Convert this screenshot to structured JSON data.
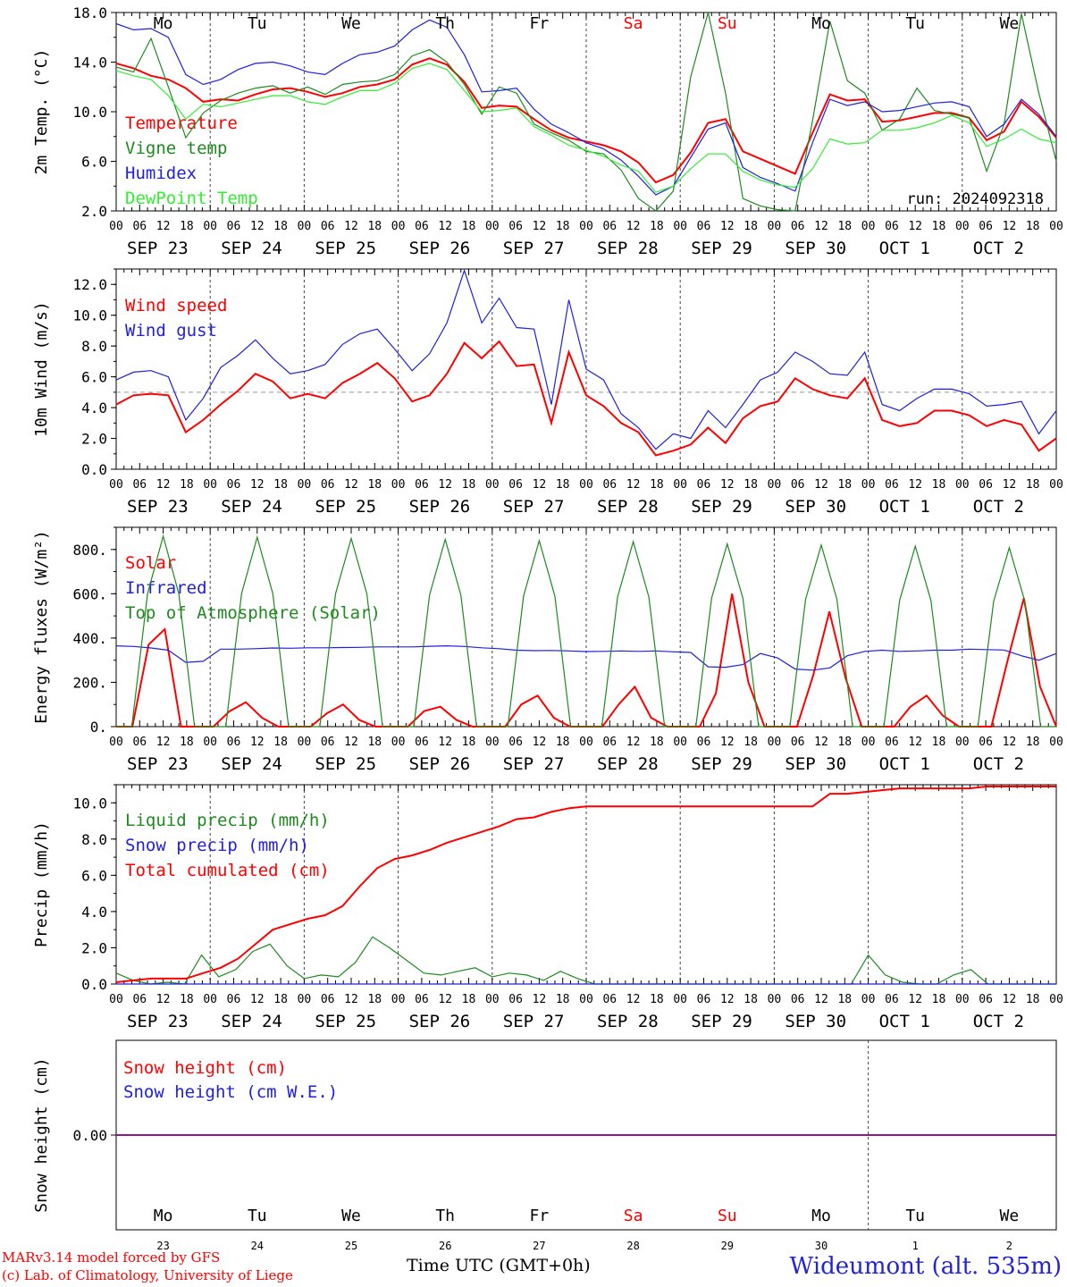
{
  "station": "Wideumont (alt. 535m)",
  "credits": [
    "MARv3.14 model forced by GFS",
    "(c) Lab. of Climatology, University of Liege"
  ],
  "time_axis_label": "Time UTC (GMT+0h)",
  "run_label": "run: 2024092318",
  "colors": {
    "red": "#ff0000",
    "green": "#1f8a1f",
    "blue": "#2020e0",
    "lightgreen": "#33ee33",
    "purple": "#8a1a8a",
    "weekend": "#ff0000"
  },
  "days": {
    "weekday_labels": [
      "Mo",
      "Tu",
      "We",
      "Th",
      "Fr",
      "Sa",
      "Su",
      "Mo",
      "Tu",
      "We"
    ],
    "weekend_index": [
      5,
      6
    ],
    "date_labels": [
      "SEP 23",
      "SEP 24",
      "SEP 25",
      "SEP 26",
      "SEP 27",
      "SEP 28",
      "SEP 29",
      "SEP 30",
      "OCT  1",
      "OCT  2"
    ],
    "day_numbers": [
      "23",
      "24",
      "25",
      "26",
      "27",
      "28",
      "29",
      "30",
      "1",
      "2"
    ],
    "hour_ticks": [
      "00",
      "06",
      "12",
      "18"
    ],
    "end_tick": "00"
  },
  "chart_data": [
    {
      "type": "line",
      "ylabel": "2m Temp. (°C)",
      "yticks": [
        "18.0",
        "14.0",
        "10.0",
        "6.0",
        "2.0"
      ],
      "ylim": [
        2,
        18
      ],
      "x_hours_step": 6,
      "series": [
        {
          "name": "Temperature",
          "color": "red",
          "values": [
            13.9,
            13.5,
            12.9,
            12.6,
            11.9,
            10.8,
            11.0,
            10.9,
            11.4,
            11.8,
            11.9,
            11.6,
            11.2,
            11.5,
            12.0,
            12.2,
            12.6,
            13.8,
            14.3,
            13.8,
            12.4,
            10.3,
            10.5,
            10.4,
            9.4,
            8.5,
            7.9,
            7.6,
            7.3,
            6.8,
            5.9,
            4.3,
            4.9,
            6.7,
            9.1,
            9.4,
            6.8,
            6.2,
            5.6,
            5.0,
            8.3,
            11.4,
            10.9,
            11.0,
            9.2,
            9.3,
            9.6,
            9.9,
            9.9,
            9.5,
            7.7,
            8.4,
            10.8,
            9.6,
            7.9
          ]
        },
        {
          "name": "Vigne temp",
          "color": "green",
          "values": [
            13.6,
            13.2,
            15.9,
            12.0,
            7.9,
            9.9,
            10.9,
            11.5,
            11.9,
            12.1,
            11.5,
            12.0,
            11.4,
            12.2,
            12.4,
            12.5,
            13.0,
            14.5,
            15.0,
            14.0,
            12.2,
            9.8,
            12.0,
            11.5,
            9.0,
            8.3,
            7.7,
            6.8,
            6.6,
            5.3,
            3.0,
            2.0,
            3.6,
            12.8,
            18.0,
            11.5,
            3.0,
            2.4,
            2.1,
            1.7,
            9.3,
            17.3,
            12.5,
            11.5,
            8.5,
            9.4,
            11.9,
            10.1,
            9.8,
            9.5,
            5.2,
            9.0,
            17.9,
            11.5,
            6.0
          ]
        },
        {
          "name": "Humidex",
          "color": "blue",
          "values": [
            17.1,
            16.6,
            16.7,
            16.0,
            13.0,
            12.2,
            12.6,
            13.4,
            13.9,
            14.0,
            13.7,
            13.2,
            13.0,
            13.9,
            14.6,
            14.8,
            15.3,
            16.6,
            17.4,
            16.8,
            14.6,
            11.6,
            11.7,
            11.9,
            10.2,
            9.0,
            8.3,
            7.5,
            7.0,
            6.1,
            4.8,
            3.3,
            4.0,
            6.3,
            8.6,
            9.1,
            5.5,
            4.7,
            4.2,
            3.6,
            7.5,
            11.0,
            10.5,
            10.8,
            10.0,
            10.1,
            10.4,
            10.7,
            10.8,
            10.4,
            8.0,
            9.0,
            11.0,
            9.8,
            8.0
          ]
        },
        {
          "name": "DewPoint Temp",
          "color": "lightgreen",
          "values": [
            13.3,
            12.9,
            12.6,
            11.3,
            9.4,
            10.6,
            10.4,
            10.7,
            11.0,
            11.3,
            11.3,
            10.8,
            10.6,
            11.2,
            11.7,
            11.7,
            12.3,
            13.5,
            13.9,
            13.4,
            11.7,
            10.0,
            10.1,
            10.3,
            8.8,
            8.1,
            7.3,
            6.9,
            6.4,
            5.7,
            5.2,
            3.5,
            4.0,
            5.4,
            6.6,
            6.6,
            5.2,
            4.5,
            4.1,
            3.9,
            5.4,
            7.8,
            7.4,
            7.5,
            8.5,
            8.5,
            8.7,
            9.1,
            9.7,
            9.1,
            7.2,
            7.8,
            8.6,
            7.8,
            7.5
          ]
        }
      ]
    },
    {
      "type": "line",
      "ylabel": "10m Wind (m/s)",
      "yticks": [
        "12.0",
        "10.0",
        "8.0",
        "6.0",
        "4.0",
        "2.0",
        "0.0"
      ],
      "ylim": [
        0,
        13
      ],
      "reference_line": 5,
      "x_hours_step": 6,
      "series": [
        {
          "name": "Wind speed",
          "color": "red",
          "values": [
            4.2,
            4.8,
            4.9,
            4.8,
            2.4,
            3.2,
            4.2,
            5.1,
            6.2,
            5.7,
            4.6,
            4.9,
            4.6,
            5.6,
            6.2,
            6.9,
            5.9,
            4.4,
            4.8,
            6.2,
            8.2,
            7.2,
            8.3,
            6.7,
            6.8,
            3.0,
            7.6,
            4.8,
            4.1,
            3.0,
            2.4,
            0.9,
            1.2,
            1.6,
            2.7,
            1.7,
            3.3,
            4.1,
            4.4,
            5.9,
            5.2,
            4.8,
            4.6,
            5.9,
            3.2,
            2.8,
            3.0,
            3.8,
            3.8,
            3.5,
            2.8,
            3.2,
            2.9,
            1.2,
            2.0
          ]
        },
        {
          "name": "Wind gust",
          "color": "blue",
          "values": [
            5.8,
            6.3,
            6.4,
            6.0,
            3.2,
            4.6,
            6.6,
            7.4,
            8.4,
            7.2,
            6.2,
            6.4,
            6.8,
            8.1,
            8.8,
            9.1,
            7.8,
            6.4,
            7.5,
            9.5,
            12.9,
            9.5,
            11.1,
            9.2,
            9.1,
            4.2,
            11.0,
            6.5,
            5.8,
            3.6,
            2.7,
            1.3,
            2.3,
            2.0,
            3.8,
            2.7,
            4.2,
            5.8,
            6.3,
            7.6,
            7.0,
            6.2,
            6.1,
            7.6,
            4.2,
            3.8,
            4.6,
            5.2,
            5.2,
            4.9,
            4.1,
            4.2,
            4.4,
            2.3,
            3.8
          ]
        }
      ]
    },
    {
      "type": "line",
      "ylabel": "Energy fluxes (W/m²)",
      "yticks": [
        "800.",
        "600.",
        "400.",
        "200.",
        "0."
      ],
      "ylim": [
        0,
        900
      ],
      "x_hours_step": 6,
      "series": [
        {
          "name": "Solar",
          "color": "red",
          "values": [
            0,
            0,
            370,
            440,
            0,
            0,
            0,
            70,
            110,
            40,
            0,
            0,
            0,
            60,
            100,
            30,
            0,
            0,
            0,
            70,
            90,
            30,
            0,
            0,
            0,
            100,
            140,
            40,
            0,
            0,
            0,
            100,
            180,
            40,
            0,
            0,
            0,
            150,
            600,
            200,
            0,
            0,
            0,
            230,
            520,
            220,
            0,
            0,
            0,
            90,
            140,
            50,
            0,
            0,
            0,
            300,
            580,
            180,
            0
          ]
        },
        {
          "name": "Infrared",
          "color": "blue",
          "values": [
            365,
            362,
            355,
            345,
            290,
            295,
            350,
            350,
            352,
            355,
            354,
            356,
            356,
            357,
            358,
            360,
            360,
            360,
            363,
            365,
            362,
            356,
            352,
            345,
            343,
            344,
            342,
            339,
            340,
            342,
            340,
            342,
            338,
            335,
            270,
            268,
            280,
            330,
            310,
            260,
            255,
            265,
            320,
            340,
            345,
            340,
            342,
            345,
            345,
            350,
            348,
            346,
            320,
            300,
            330
          ]
        },
        {
          "name": "Top of Atmosphere (Solar)",
          "color": "green",
          "values": [
            0,
            0,
            600,
            860,
            600,
            0,
            0,
            0,
            600,
            855,
            600,
            0,
            0,
            0,
            600,
            850,
            600,
            0,
            0,
            0,
            595,
            845,
            595,
            0,
            0,
            0,
            590,
            840,
            590,
            0,
            0,
            0,
            585,
            835,
            585,
            0,
            0,
            0,
            580,
            825,
            580,
            0,
            0,
            0,
            575,
            820,
            575,
            0,
            0,
            0,
            570,
            815,
            570,
            0,
            0,
            0,
            565,
            808,
            565,
            0,
            0
          ]
        }
      ]
    },
    {
      "type": "line",
      "ylabel": "Precip (mm/h)",
      "yticks": [
        "10.0",
        "8.0",
        "6.0",
        "4.0",
        "2.0",
        "0.0"
      ],
      "ylim": [
        0,
        11
      ],
      "x_hours_step": 6,
      "series": [
        {
          "name": "Liquid precip (mm/h)",
          "color": "green",
          "values": [
            0.6,
            0.2,
            0.0,
            0.1,
            0.0,
            1.6,
            0.4,
            0.8,
            1.8,
            2.2,
            1.0,
            0.3,
            0.5,
            0.4,
            1.2,
            2.6,
            2.0,
            1.3,
            0.6,
            0.5,
            0.7,
            0.9,
            0.4,
            0.6,
            0.5,
            0.2,
            0.7,
            0.3,
            0.0,
            0.0,
            0.0,
            0.0,
            0.0,
            0.0,
            0.0,
            0.0,
            0.0,
            0.0,
            0.0,
            0.0,
            0.0,
            0.0,
            0.0,
            0.0,
            1.6,
            0.5,
            0.1,
            0.0,
            0.0,
            0.5,
            0.8,
            0.0,
            0.0,
            0.0,
            0.0,
            0.0
          ]
        },
        {
          "name": "Snow precip (mm/h)",
          "color": "blue",
          "values": [
            0,
            0,
            0,
            0,
            0,
            0,
            0,
            0,
            0,
            0,
            0,
            0,
            0,
            0,
            0,
            0,
            0,
            0,
            0,
            0,
            0,
            0,
            0,
            0,
            0,
            0,
            0,
            0,
            0,
            0,
            0,
            0,
            0,
            0,
            0,
            0,
            0,
            0,
            0,
            0,
            0,
            0,
            0,
            0,
            0,
            0,
            0,
            0,
            0,
            0,
            0,
            0,
            0,
            0,
            0
          ]
        },
        {
          "name": "Total cumulated (cm)",
          "color": "red",
          "values": [
            0.1,
            0.2,
            0.3,
            0.3,
            0.3,
            0.6,
            0.9,
            1.4,
            2.2,
            3.0,
            3.3,
            3.6,
            3.8,
            4.3,
            5.4,
            6.4,
            6.9,
            7.1,
            7.4,
            7.8,
            8.1,
            8.4,
            8.7,
            9.1,
            9.2,
            9.5,
            9.7,
            9.8,
            9.8,
            9.8,
            9.8,
            9.8,
            9.8,
            9.8,
            9.8,
            9.8,
            9.8,
            9.8,
            9.8,
            9.8,
            9.8,
            10.5,
            10.5,
            10.6,
            10.7,
            10.8,
            10.8,
            10.8,
            10.8,
            10.8,
            10.9,
            10.9,
            10.9,
            10.9,
            10.9
          ]
        }
      ]
    },
    {
      "type": "line",
      "ylabel": "Snow height (cm)",
      "yticks": [
        "0.00"
      ],
      "x_hours_step": 6,
      "series": [
        {
          "name": "Snow height (cm)",
          "color": "red",
          "values": [
            0,
            0
          ]
        },
        {
          "name": "Snow height (cm W.E.)",
          "color": "blue",
          "values": [
            0,
            0
          ]
        }
      ]
    }
  ]
}
